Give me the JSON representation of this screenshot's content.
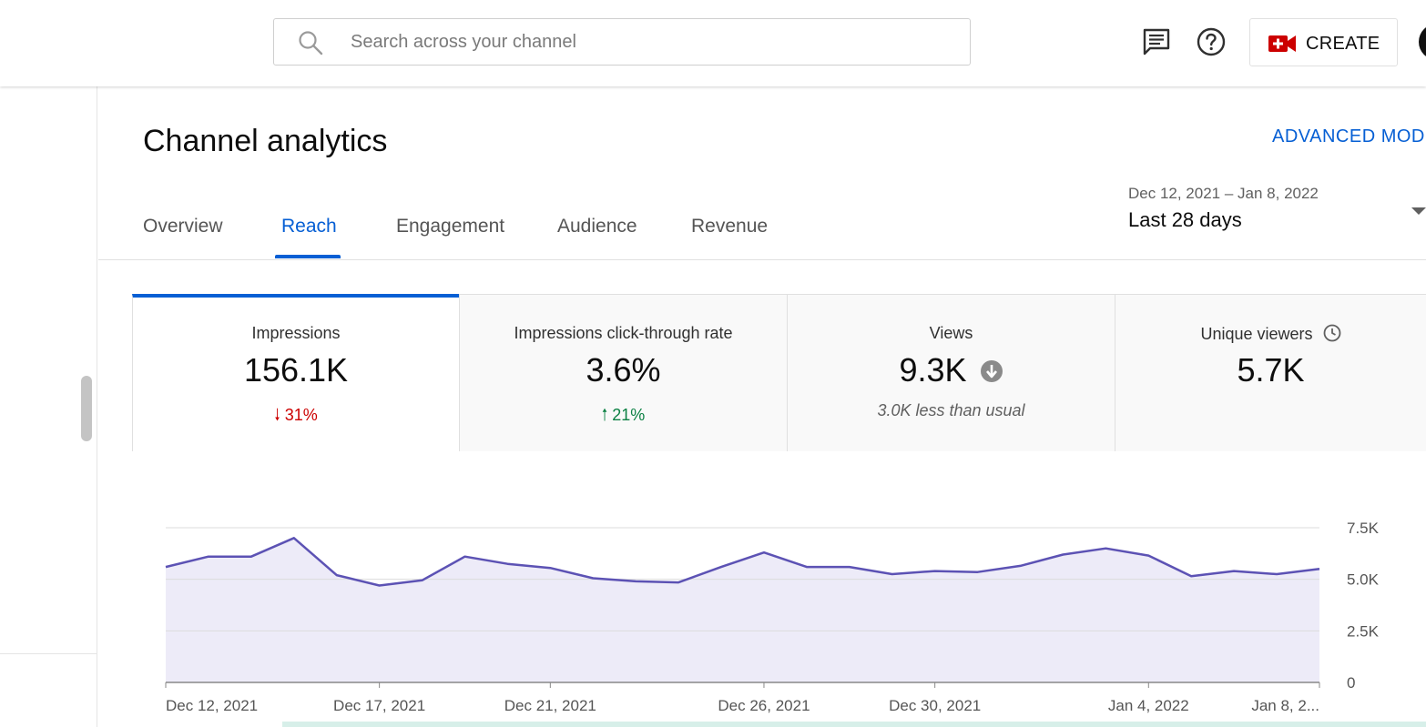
{
  "search": {
    "placeholder": "Search across your channel"
  },
  "header": {
    "create_label": "CREATE",
    "icons": {
      "feedback": "feedback-icon",
      "help": "help-icon",
      "create": "video-camera-add-icon",
      "search": "search-icon"
    },
    "colors": {
      "create_icon": "#cc0000"
    }
  },
  "page": {
    "title": "Channel analytics",
    "advanced_mode": "ADVANCED MODE"
  },
  "tabs": [
    {
      "label": "Overview"
    },
    {
      "label": "Reach",
      "active": true
    },
    {
      "label": "Engagement"
    },
    {
      "label": "Audience"
    },
    {
      "label": "Revenue"
    }
  ],
  "date_picker": {
    "range": "Dec 12, 2021 – Jan 8, 2022",
    "label": "Last 28 days"
  },
  "metrics": [
    {
      "name": "Impressions",
      "value": "156.1K",
      "delta": "31%",
      "direction": "down",
      "selected": true
    },
    {
      "name": "Impressions click-through rate",
      "value": "3.6%",
      "delta": "21%",
      "direction": "up"
    },
    {
      "name": "Views",
      "value": "9.3K",
      "note": "3.0K less than usual",
      "icon": "arrow-down-circle-icon"
    },
    {
      "name": "Unique viewers",
      "value": "5.7K",
      "icon": "clock-icon"
    }
  ],
  "colors": {
    "accent": "#065fd4",
    "line": "#5c52b4",
    "area": "#edebf8",
    "down": "#cc0000",
    "up": "#0b8043"
  },
  "chart_data": {
    "type": "area",
    "series": [
      {
        "values": [
          5600,
          6100,
          6100,
          7000,
          5200,
          4700,
          4950,
          6100,
          5750,
          5550,
          5050,
          4900,
          4850,
          5600,
          6300,
          5600,
          5600,
          5250,
          5400,
          5350,
          5650,
          6200,
          6500,
          6150,
          5150,
          5400,
          5250,
          5500
        ]
      }
    ],
    "x_tick_labels": [
      {
        "label": "Dec 12, 2021",
        "index": 0
      },
      {
        "label": "Dec 17, 2021",
        "index": 5
      },
      {
        "label": "Dec 21, 2021",
        "index": 9
      },
      {
        "label": "Dec 26, 2021",
        "index": 14
      },
      {
        "label": "Dec 30, 2021",
        "index": 18
      },
      {
        "label": "Jan 4, 2022",
        "index": 23
      },
      {
        "label": "Jan 8, 2...",
        "index": 27
      }
    ],
    "y_ticks": [
      {
        "value": 0,
        "label": "0"
      },
      {
        "value": 2500,
        "label": "2.5K"
      },
      {
        "value": 5000,
        "label": "5.0K"
      },
      {
        "value": 7500,
        "label": "7.5K"
      }
    ],
    "ylim": [
      0,
      7500
    ],
    "grid": true,
    "y_axis_side": "right"
  }
}
